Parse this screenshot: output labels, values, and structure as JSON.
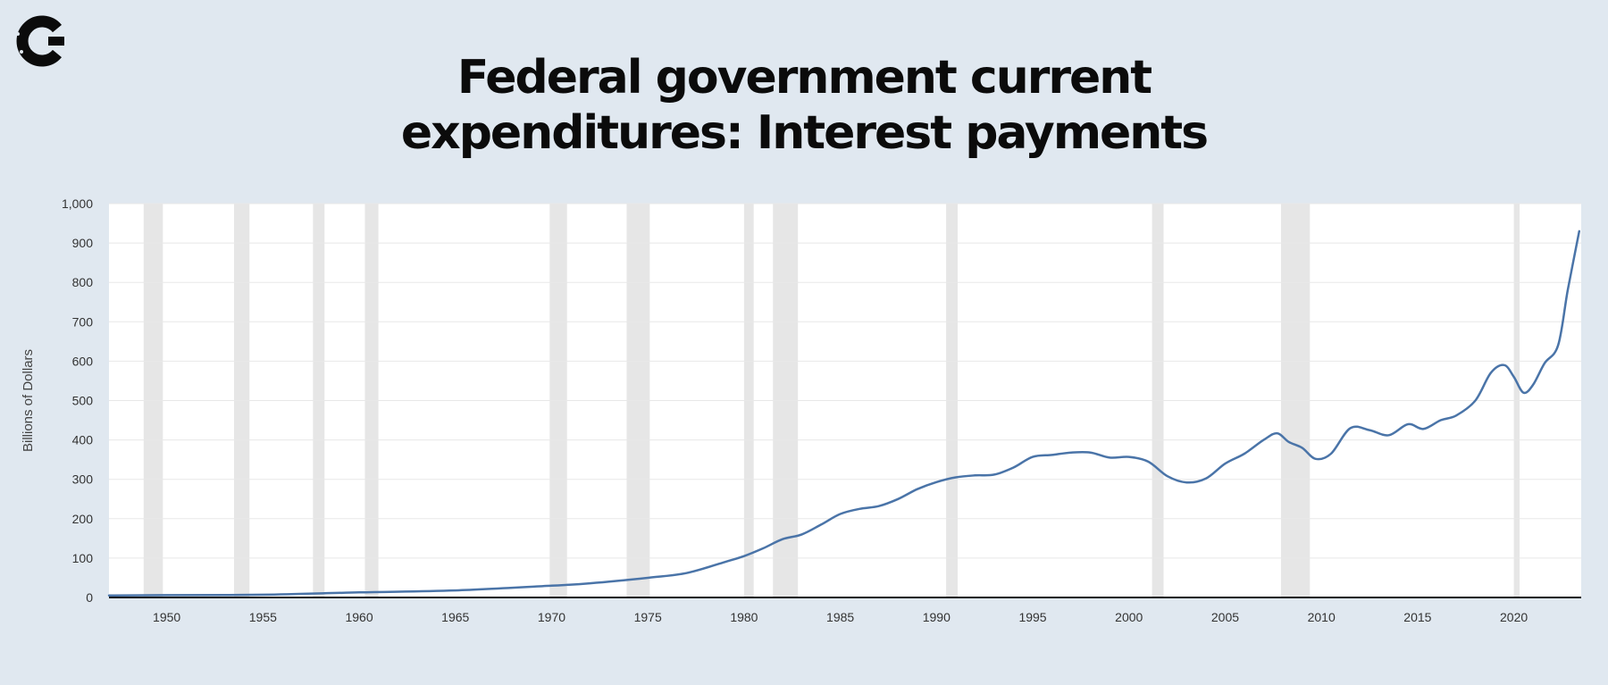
{
  "brand": {
    "logo_icon": "c-logo-icon",
    "color": "#0b0b0b"
  },
  "colors": {
    "background": "#e0e8f0",
    "plot_background": "#ffffff",
    "line": "#4a74a8",
    "recession": "#e6e6e6",
    "grid": "#e8e8e8",
    "axis": "#111111"
  },
  "chart_data": {
    "type": "line",
    "title_lines": [
      "Federal government current",
      "expenditures: Interest payments"
    ],
    "xlabel": "",
    "ylabel": "Billions of Dollars",
    "xlim": [
      1947,
      2023.5
    ],
    "ylim": [
      0,
      1000
    ],
    "y_ticks": [
      0,
      100,
      200,
      300,
      400,
      500,
      600,
      700,
      800,
      900,
      1000
    ],
    "y_tick_labels": [
      "0",
      "100",
      "200",
      "300",
      "400",
      "500",
      "600",
      "700",
      "800",
      "900",
      "1,000"
    ],
    "x_ticks": [
      1950,
      1955,
      1960,
      1965,
      1970,
      1975,
      1980,
      1985,
      1990,
      1995,
      2000,
      2005,
      2010,
      2015,
      2020
    ],
    "x_tick_labels": [
      "1950",
      "1955",
      "1960",
      "1965",
      "1970",
      "1975",
      "1980",
      "1985",
      "1990",
      "1995",
      "2000",
      "2005",
      "2010",
      "2015",
      "2020"
    ],
    "grid": true,
    "recessions": [
      [
        1948.8,
        1949.8
      ],
      [
        1953.5,
        1954.3
      ],
      [
        1957.6,
        1958.2
      ],
      [
        1960.3,
        1961.0
      ],
      [
        1969.9,
        1970.8
      ],
      [
        1973.9,
        1975.1
      ],
      [
        1980.0,
        1980.5
      ],
      [
        1981.5,
        1982.8
      ],
      [
        1990.5,
        1991.1
      ],
      [
        2001.2,
        2001.8
      ],
      [
        2007.9,
        2009.4
      ],
      [
        2020.0,
        2020.3
      ]
    ],
    "series": [
      {
        "name": "Interest payments",
        "points": [
          [
            1947,
            5
          ],
          [
            1950,
            6
          ],
          [
            1955,
            7
          ],
          [
            1960,
            13
          ],
          [
            1965,
            18
          ],
          [
            1970,
            30
          ],
          [
            1972,
            36
          ],
          [
            1975,
            50
          ],
          [
            1977,
            62
          ],
          [
            1979,
            90
          ],
          [
            1980,
            105
          ],
          [
            1981,
            125
          ],
          [
            1982,
            148
          ],
          [
            1983,
            160
          ],
          [
            1984,
            185
          ],
          [
            1985,
            212
          ],
          [
            1986,
            225
          ],
          [
            1987,
            232
          ],
          [
            1988,
            250
          ],
          [
            1989,
            275
          ],
          [
            1990,
            293
          ],
          [
            1991,
            305
          ],
          [
            1992,
            310
          ],
          [
            1993,
            312
          ],
          [
            1994,
            330
          ],
          [
            1995,
            357
          ],
          [
            1996,
            362
          ],
          [
            1997,
            368
          ],
          [
            1998,
            368
          ],
          [
            1999,
            355
          ],
          [
            2000,
            357
          ],
          [
            2001,
            345
          ],
          [
            2002,
            308
          ],
          [
            2003,
            292
          ],
          [
            2004,
            302
          ],
          [
            2005,
            340
          ],
          [
            2006,
            365
          ],
          [
            2007,
            400
          ],
          [
            2007.7,
            417
          ],
          [
            2008.3,
            395
          ],
          [
            2009,
            380
          ],
          [
            2009.7,
            352
          ],
          [
            2010.5,
            365
          ],
          [
            2011.5,
            430
          ],
          [
            2012.5,
            425
          ],
          [
            2013.5,
            412
          ],
          [
            2014.5,
            440
          ],
          [
            2015.3,
            428
          ],
          [
            2016.2,
            450
          ],
          [
            2017,
            462
          ],
          [
            2018,
            500
          ],
          [
            2018.8,
            570
          ],
          [
            2019.5,
            590
          ],
          [
            2020,
            560
          ],
          [
            2020.5,
            520
          ],
          [
            2021,
            540
          ],
          [
            2021.6,
            595
          ],
          [
            2022.3,
            640
          ],
          [
            2022.8,
            780
          ],
          [
            2023.4,
            930
          ]
        ]
      }
    ]
  }
}
